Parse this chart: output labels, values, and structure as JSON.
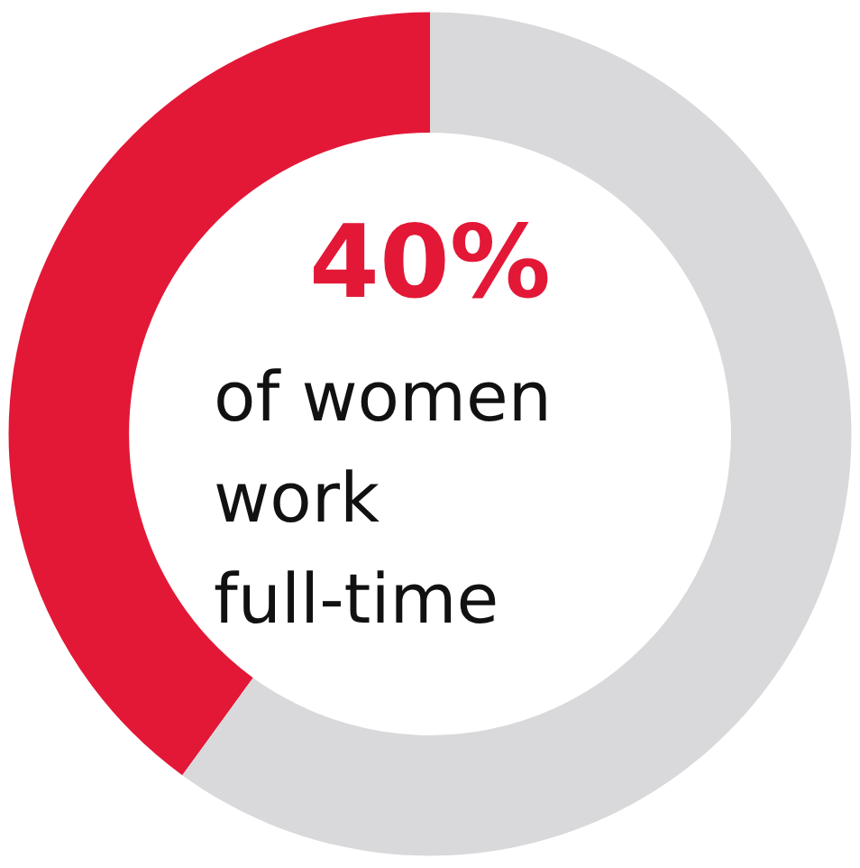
{
  "chart_data": {
    "type": "donut",
    "categories": [
      null,
      null
    ],
    "values": [
      40,
      60
    ],
    "colors": [
      "#e31837",
      "#d9d9db"
    ],
    "value_labels": [
      "40%",
      null
    ],
    "annotations": [
      "of women work full-time"
    ]
  }
}
